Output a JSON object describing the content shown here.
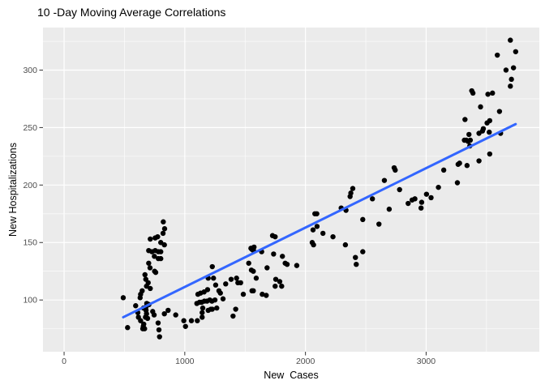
{
  "chart_data": {
    "type": "scatter",
    "title": "10 -Day Moving Average Correlations",
    "xlabel": "New  Cases",
    "ylabel": "New Hospitalizations",
    "xlim": [
      -175,
      3938
    ],
    "ylim": [
      55,
      337
    ],
    "x_ticks": [
      0,
      1000,
      2000,
      3000
    ],
    "x_minor_ticks": [
      500,
      1500,
      2500,
      3500
    ],
    "y_ticks": [
      100,
      150,
      200,
      250,
      300
    ],
    "y_minor_ticks": [
      75,
      125,
      175,
      225,
      275,
      325
    ],
    "grid": true,
    "legend": "none",
    "panel_background": "#EBEBEB",
    "grid_major_color": "#FFFFFF",
    "grid_minor_color": "#FFFFFF",
    "tick_label_color": "#4D4D4D",
    "tick_mark_color": "#333333",
    "point_color": "#000000",
    "point_radius": 3.2,
    "regression_line": {
      "x1": 490,
      "y1": 85,
      "x2": 3742,
      "y2": 253,
      "color": "#3366FF",
      "width": 3
    },
    "points": [
      [
        822,
        168
      ],
      [
        833,
        162
      ],
      [
        820,
        158
      ],
      [
        714,
        153
      ],
      [
        755,
        154
      ],
      [
        775,
        155
      ],
      [
        801,
        150
      ],
      [
        831,
        148
      ],
      [
        701,
        143
      ],
      [
        728,
        142
      ],
      [
        755,
        143
      ],
      [
        781,
        142
      ],
      [
        801,
        142
      ],
      [
        748,
        138
      ],
      [
        781,
        136
      ],
      [
        801,
        136
      ],
      [
        701,
        132
      ],
      [
        712,
        128
      ],
      [
        750,
        125
      ],
      [
        759,
        124
      ],
      [
        670,
        122
      ],
      [
        677,
        118
      ],
      [
        697,
        115
      ],
      [
        683,
        112
      ],
      [
        714,
        110
      ],
      [
        647,
        108
      ],
      [
        634,
        105
      ],
      [
        630,
        102
      ],
      [
        490,
        102
      ],
      [
        593,
        95
      ],
      [
        611,
        89
      ],
      [
        658,
        93
      ],
      [
        679,
        94
      ],
      [
        685,
        97
      ],
      [
        703,
        96
      ],
      [
        679,
        91
      ],
      [
        683,
        88
      ],
      [
        674,
        85
      ],
      [
        692,
        84
      ],
      [
        734,
        90
      ],
      [
        746,
        87
      ],
      [
        831,
        88
      ],
      [
        862,
        91
      ],
      [
        925,
        87
      ],
      [
        992,
        82
      ],
      [
        1006,
        77
      ],
      [
        1055,
        82
      ],
      [
        526,
        76
      ],
      [
        656,
        77
      ],
      [
        667,
        75
      ],
      [
        779,
        80
      ],
      [
        786,
        74
      ],
      [
        791,
        68
      ],
      [
        616,
        85
      ],
      [
        634,
        82
      ],
      [
        660,
        79
      ],
      [
        652,
        75
      ],
      [
        1144,
        85
      ],
      [
        1109,
        105
      ],
      [
        1131,
        106
      ],
      [
        1160,
        107
      ],
      [
        1189,
        109
      ],
      [
        1100,
        97
      ],
      [
        1122,
        98
      ],
      [
        1140,
        98
      ],
      [
        1162,
        99
      ],
      [
        1184,
        99
      ],
      [
        1207,
        100
      ],
      [
        1225,
        99
      ],
      [
        1250,
        100
      ],
      [
        1194,
        91
      ],
      [
        1216,
        92
      ],
      [
        1144,
        89
      ],
      [
        1265,
        93
      ],
      [
        1149,
        93
      ],
      [
        1228,
        92
      ],
      [
        1104,
        82
      ],
      [
        1228,
        129
      ],
      [
        1194,
        119
      ],
      [
        1238,
        119
      ],
      [
        1256,
        113
      ],
      [
        1283,
        108
      ],
      [
        1295,
        106
      ],
      [
        1317,
        101
      ],
      [
        1339,
        114
      ],
      [
        1384,
        118
      ],
      [
        1429,
        119
      ],
      [
        1440,
        115
      ],
      [
        1463,
        115
      ],
      [
        1485,
        105
      ],
      [
        1400,
        86
      ],
      [
        1422,
        92
      ],
      [
        1530,
        132
      ],
      [
        1548,
        145
      ],
      [
        1574,
        146
      ],
      [
        1552,
        126
      ],
      [
        1568,
        125
      ],
      [
        1592,
        119
      ],
      [
        1557,
        108
      ],
      [
        1568,
        108
      ],
      [
        1642,
        105
      ],
      [
        1675,
        104
      ],
      [
        1682,
        128
      ],
      [
        1736,
        140
      ],
      [
        1809,
        138
      ],
      [
        1832,
        132
      ],
      [
        1848,
        131
      ],
      [
        1754,
        118
      ],
      [
        1787,
        116
      ],
      [
        1803,
        112
      ],
      [
        1749,
        112
      ],
      [
        1928,
        130
      ],
      [
        1727,
        156
      ],
      [
        1749,
        155
      ],
      [
        1557,
        144
      ],
      [
        1570,
        143
      ],
      [
        1637,
        142
      ],
      [
        2078,
        175
      ],
      [
        2094,
        175
      ],
      [
        2063,
        161
      ],
      [
        2056,
        150
      ],
      [
        2067,
        148
      ],
      [
        2096,
        164
      ],
      [
        2145,
        158
      ],
      [
        2228,
        155
      ],
      [
        2296,
        180
      ],
      [
        2336,
        178
      ],
      [
        2331,
        148
      ],
      [
        2370,
        190
      ],
      [
        2376,
        193
      ],
      [
        2392,
        197
      ],
      [
        2414,
        137
      ],
      [
        2421,
        131
      ],
      [
        2475,
        170
      ],
      [
        2475,
        142
      ],
      [
        2555,
        188
      ],
      [
        2609,
        166
      ],
      [
        2654,
        204
      ],
      [
        2694,
        179
      ],
      [
        2735,
        215
      ],
      [
        2744,
        213
      ],
      [
        2780,
        196
      ],
      [
        2851,
        184
      ],
      [
        2884,
        187
      ],
      [
        2907,
        188
      ],
      [
        2958,
        180
      ],
      [
        2963,
        185
      ],
      [
        3003,
        192
      ],
      [
        3041,
        189
      ],
      [
        3102,
        198
      ],
      [
        3146,
        213
      ],
      [
        3265,
        218
      ],
      [
        3277,
        219
      ],
      [
        3339,
        217
      ],
      [
        3259,
        202
      ],
      [
        3317,
        239
      ],
      [
        3333,
        239
      ],
      [
        3348,
        238
      ],
      [
        3366,
        239
      ],
      [
        3362,
        234
      ],
      [
        3355,
        244
      ],
      [
        3438,
        245
      ],
      [
        3467,
        247
      ],
      [
        3523,
        246
      ],
      [
        3617,
        245
      ],
      [
        3438,
        221
      ],
      [
        3527,
        227
      ],
      [
        3322,
        257
      ],
      [
        3527,
        256
      ],
      [
        3505,
        254
      ],
      [
        3474,
        249
      ],
      [
        3608,
        264
      ],
      [
        3378,
        282
      ],
      [
        3388,
        280
      ],
      [
        3512,
        279
      ],
      [
        3550,
        280
      ],
      [
        3451,
        268
      ],
      [
        3590,
        313
      ],
      [
        3662,
        300
      ],
      [
        3698,
        326
      ],
      [
        3698,
        286
      ],
      [
        3707,
        292
      ],
      [
        3724,
        302
      ],
      [
        3742,
        316
      ]
    ]
  }
}
